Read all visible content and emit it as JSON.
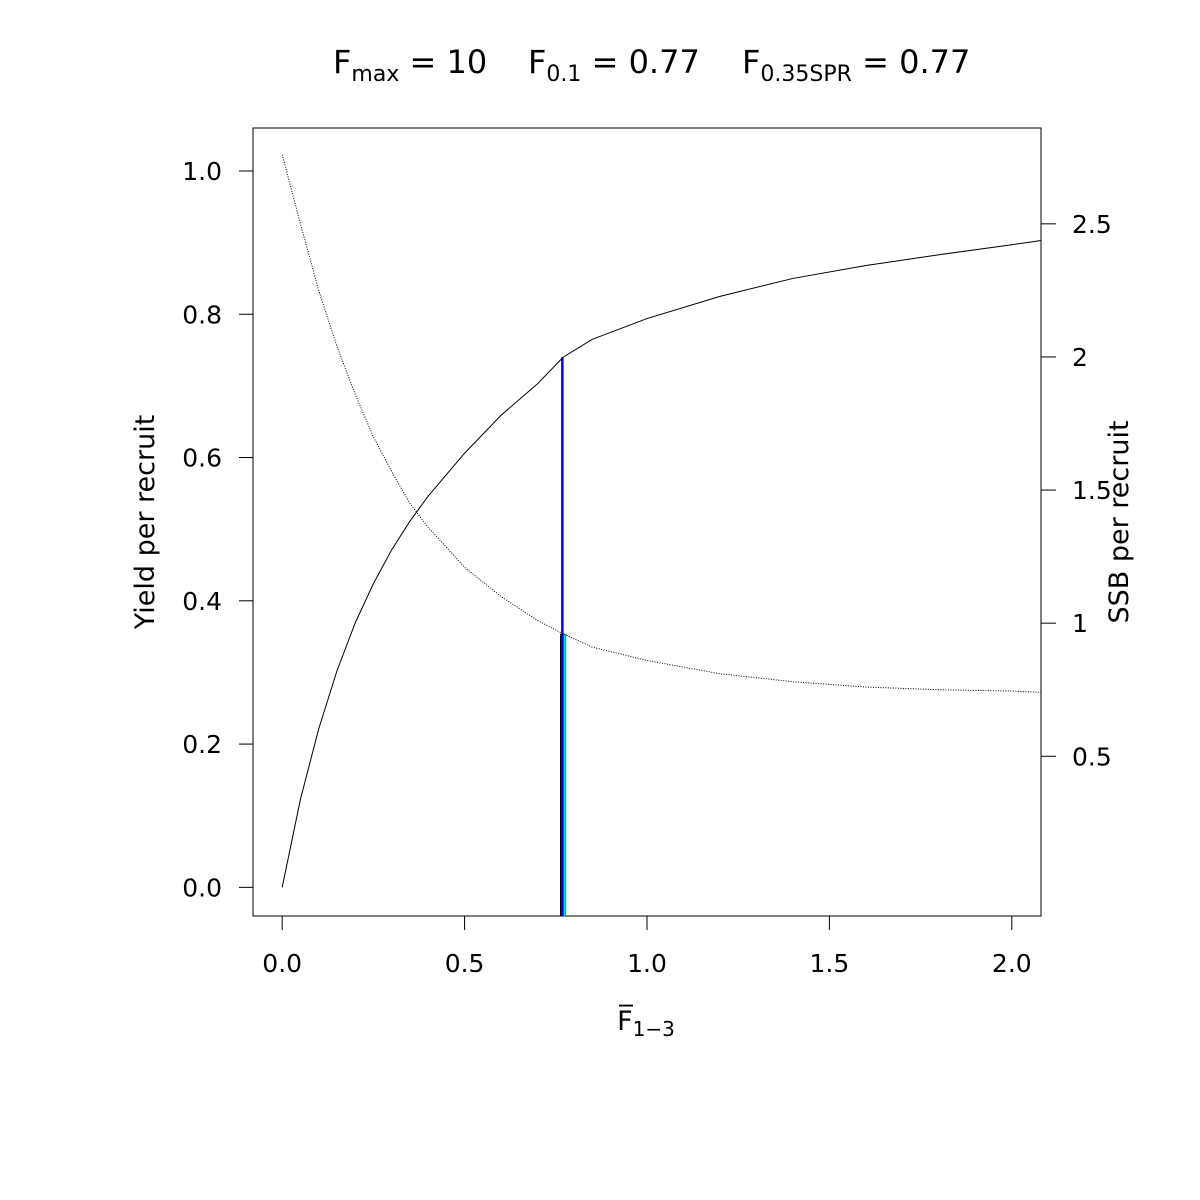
{
  "title_parts": [
    {
      "main": "F",
      "sub": "max",
      "rest": " = 10"
    },
    {
      "main": "F",
      "sub": "0.1",
      "rest": " = 0.77"
    },
    {
      "main": "F",
      "sub": "0.35SPR",
      "rest": " = 0.77"
    }
  ],
  "chart_data": {
    "type": "line",
    "xlabel": {
      "main": "F̅",
      "sub": "1−3"
    },
    "ylabel": "Yield per recruit",
    "y2label": "SSB per recruit",
    "xlim": [
      -0.08,
      2.08
    ],
    "ylim": [
      -0.04,
      1.06
    ],
    "y2lim": [
      -0.1,
      2.86
    ],
    "x_ticks": [
      0,
      0.5,
      1,
      1.5,
      2
    ],
    "x_tick_labels": [
      "0.0",
      "0.5",
      "1.0",
      "1.5",
      "2.0"
    ],
    "y_ticks": [
      0,
      0.2,
      0.4,
      0.6,
      0.8,
      1
    ],
    "y_tick_labels": [
      "0.0",
      "0.2",
      "0.4",
      "0.6",
      "0.8",
      "1.0"
    ],
    "y2_ticks": [
      0.5,
      1,
      1.5,
      2,
      2.5
    ],
    "y2_tick_labels": [
      "0.5",
      "1",
      "1.5",
      "2",
      "2.5"
    ],
    "series": [
      {
        "axis": "left",
        "style": "solid",
        "color": "#000000",
        "x": [
          0,
          0.05,
          0.1,
          0.15,
          0.2,
          0.25,
          0.3,
          0.35,
          0.4,
          0.5,
          0.6,
          0.7,
          0.77,
          0.85,
          1.0,
          1.2,
          1.4,
          1.6,
          1.8,
          2.0,
          2.08
        ],
        "y": [
          0,
          0.123,
          0.221,
          0.302,
          0.369,
          0.424,
          0.471,
          0.511,
          0.546,
          0.606,
          0.659,
          0.703,
          0.74,
          0.765,
          0.794,
          0.825,
          0.85,
          0.868,
          0.883,
          0.897,
          0.903
        ]
      },
      {
        "axis": "right",
        "style": "dotted",
        "color": "#000000",
        "x": [
          0,
          0.05,
          0.1,
          0.15,
          0.2,
          0.25,
          0.3,
          0.35,
          0.4,
          0.5,
          0.6,
          0.7,
          0.77,
          0.85,
          1.0,
          1.2,
          1.4,
          1.6,
          1.8,
          2.0,
          2.08
        ],
        "y": [
          2.76,
          2.5,
          2.25,
          2.04,
          1.86,
          1.7,
          1.57,
          1.45,
          1.36,
          1.21,
          1.1,
          1.01,
          0.96,
          0.91,
          0.86,
          0.81,
          0.78,
          0.76,
          0.75,
          0.745,
          0.74
        ]
      }
    ],
    "reference_lines": [
      {
        "x": 0.765,
        "axis": "right",
        "y_top": 0.96,
        "color": "#000000"
      },
      {
        "x": 0.775,
        "axis": "right",
        "y_top": 0.96,
        "color": "#00cc00"
      },
      {
        "x": 0.772,
        "axis": "right",
        "y_top": 0.96,
        "color": "#00e5ee"
      },
      {
        "x": 0.768,
        "axis": "left",
        "y_top": 0.74,
        "color": "#0000ff"
      }
    ]
  }
}
